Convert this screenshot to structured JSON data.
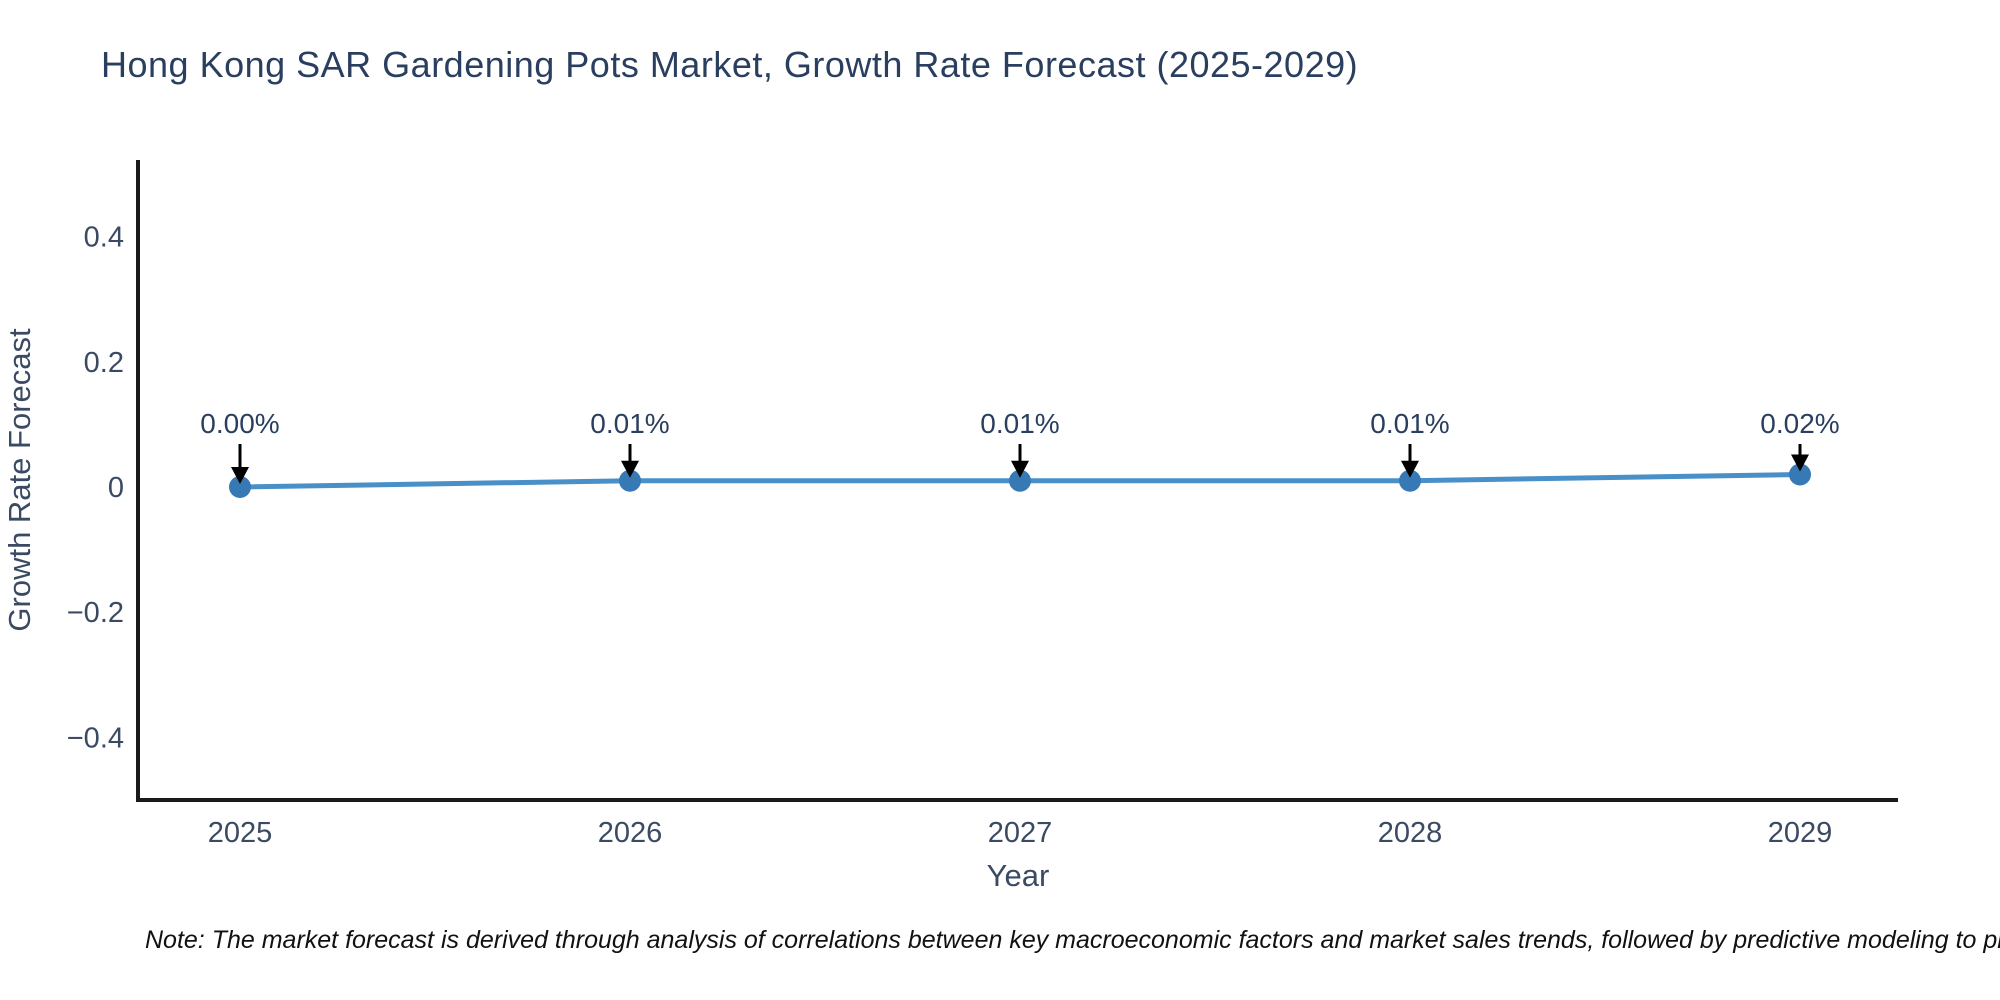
{
  "page": {
    "background": "#ffffff"
  },
  "chart_data": {
    "type": "line",
    "title": "Hong Kong SAR Gardening Pots Market, Growth Rate Forecast (2025-2029)",
    "xlabel": "Year",
    "ylabel": "Growth Rate Forecast",
    "x": [
      2025,
      2026,
      2027,
      2028,
      2029
    ],
    "x_labels": [
      "2025",
      "2026",
      "2027",
      "2028",
      "2029"
    ],
    "series": [
      {
        "name": "Growth Rate Forecast",
        "values": [
          0.0,
          0.01,
          0.01,
          0.01,
          0.02
        ],
        "point_labels": [
          "0.00%",
          "0.01%",
          "0.01%",
          "0.01%",
          "0.02%"
        ]
      }
    ],
    "ylim": [
      -0.5,
      0.52
    ],
    "yticks": [
      0.4,
      0.2,
      0,
      -0.2,
      -0.4
    ],
    "ytick_labels": [
      "0.4",
      "0.2",
      "0",
      "−0.2",
      "−0.4"
    ],
    "grid": false,
    "legend": "none",
    "annotation_arrows": "down",
    "colors": {
      "line": "#4a90c8",
      "marker": "#3679b5",
      "arrow": "#000000",
      "axis": "#1a1a1a",
      "title_text": "#2a3f5f",
      "tick_text": "#3b4a63"
    }
  },
  "note": {
    "text": "Note: The market forecast is derived through analysis of correlations between key macroeconomic factors and market sales trends, followed by predictive modeling to project future sales."
  }
}
